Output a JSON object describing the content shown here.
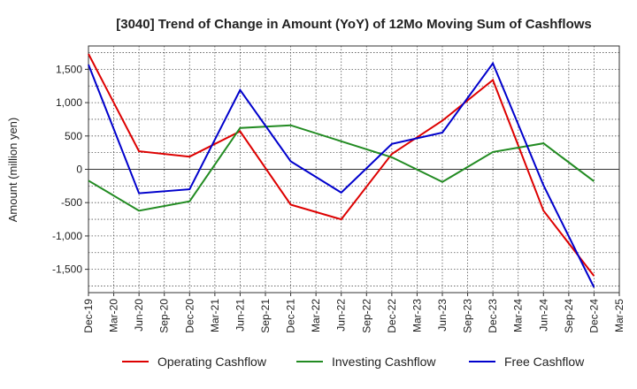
{
  "chart_data": {
    "type": "line",
    "title": "[3040]  Trend of Change in Amount (YoY) of 12Mo Moving Sum of Cashflows",
    "xlabel": "",
    "ylabel": "Amount (million yen)",
    "ylim": [
      -1850,
      1850
    ],
    "yticks": [
      -1500,
      -1000,
      -500,
      0,
      500,
      1000,
      1500
    ],
    "ytick_labels": [
      "-1,500",
      "-1,000",
      "-500",
      "0",
      "500",
      "1,000",
      "1,500"
    ],
    "categories": [
      "Dec-19",
      "Mar-20",
      "Jun-20",
      "Sep-20",
      "Dec-20",
      "Mar-21",
      "Jun-21",
      "Sep-21",
      "Dec-21",
      "Mar-22",
      "Jun-22",
      "Sep-22",
      "Dec-22",
      "Mar-23",
      "Jun-23",
      "Sep-23",
      "Dec-23",
      "Mar-24",
      "Jun-24",
      "Sep-24",
      "Dec-24",
      "Mar-25"
    ],
    "grid": true,
    "legend_position": "bottom",
    "series": [
      {
        "name": "Operating Cashflow",
        "color": "#dd0000",
        "values": [
          1730,
          null,
          270,
          null,
          190,
          null,
          570,
          null,
          -530,
          null,
          -750,
          null,
          230,
          null,
          730,
          null,
          1340,
          null,
          -620,
          null,
          -1600,
          null
        ]
      },
      {
        "name": "Investing Cashflow",
        "color": "#228b22",
        "values": [
          -170,
          null,
          -620,
          null,
          -480,
          null,
          620,
          null,
          660,
          null,
          420,
          null,
          180,
          null,
          -190,
          null,
          260,
          null,
          390,
          null,
          -180,
          null
        ]
      },
      {
        "name": "Free Cashflow",
        "color": "#0000cc",
        "values": [
          1570,
          null,
          -360,
          null,
          -300,
          null,
          1190,
          null,
          120,
          null,
          -350,
          null,
          380,
          null,
          550,
          null,
          1590,
          null,
          -240,
          null,
          -1770,
          null
        ]
      }
    ]
  }
}
